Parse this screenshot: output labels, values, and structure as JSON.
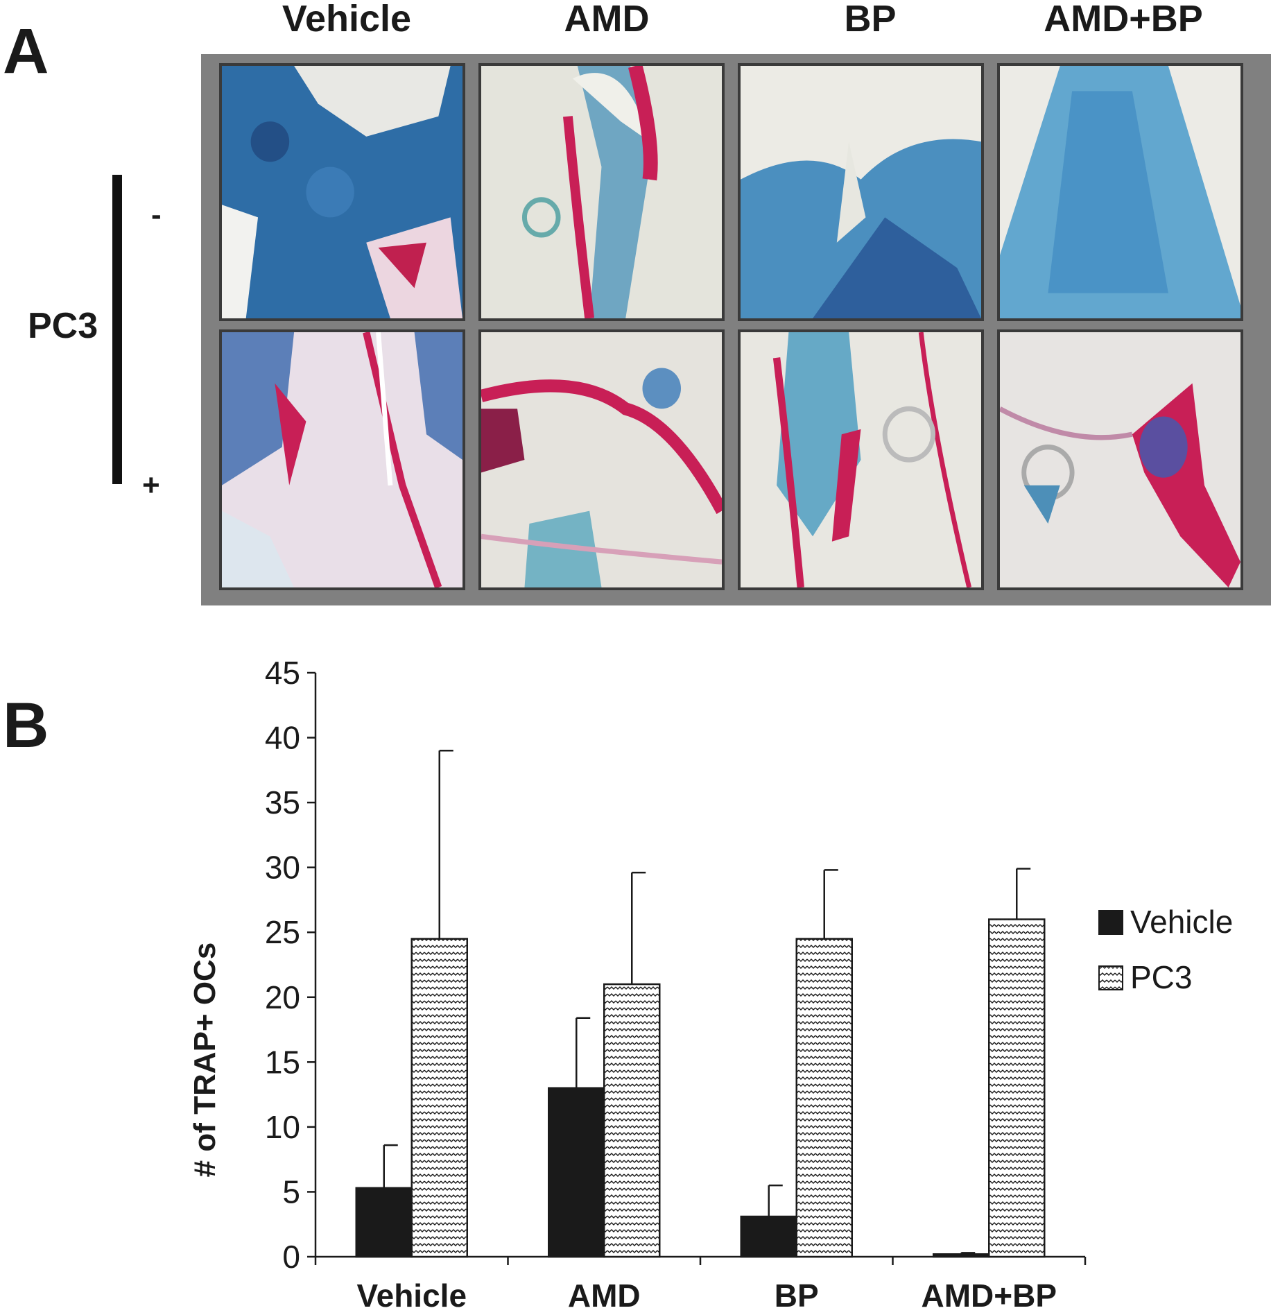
{
  "panel_a": {
    "letter": "A",
    "columns": [
      "Vehicle",
      "AMD",
      "BP",
      "AMD+BP"
    ],
    "row_group_label": "PC3",
    "row_signs": [
      "-",
      "+"
    ]
  },
  "panel_b": {
    "letter": "B"
  },
  "chart_data": {
    "type": "bar",
    "title": "",
    "xlabel": "",
    "ylabel": "# of TRAP+ OCs",
    "ylim": [
      0,
      45
    ],
    "yticks": [
      0,
      5,
      10,
      15,
      20,
      25,
      30,
      35,
      40,
      45
    ],
    "grid": false,
    "legend_position": "right",
    "categories": [
      "Vehicle",
      "AMD",
      "BP",
      "AMD+BP"
    ],
    "series": [
      {
        "name": "Vehicle",
        "fill": "solid",
        "color": "#1a1a1a",
        "values": [
          5.3,
          13.0,
          3.1,
          0.2
        ],
        "errors": [
          3.3,
          5.4,
          2.4,
          0.1
        ]
      },
      {
        "name": "PC3",
        "fill": "zigzag-hatch",
        "color": "#1a1a1a",
        "values": [
          24.5,
          21.0,
          24.5,
          26.0
        ],
        "errors": [
          14.5,
          8.6,
          5.3,
          3.9
        ]
      }
    ]
  }
}
